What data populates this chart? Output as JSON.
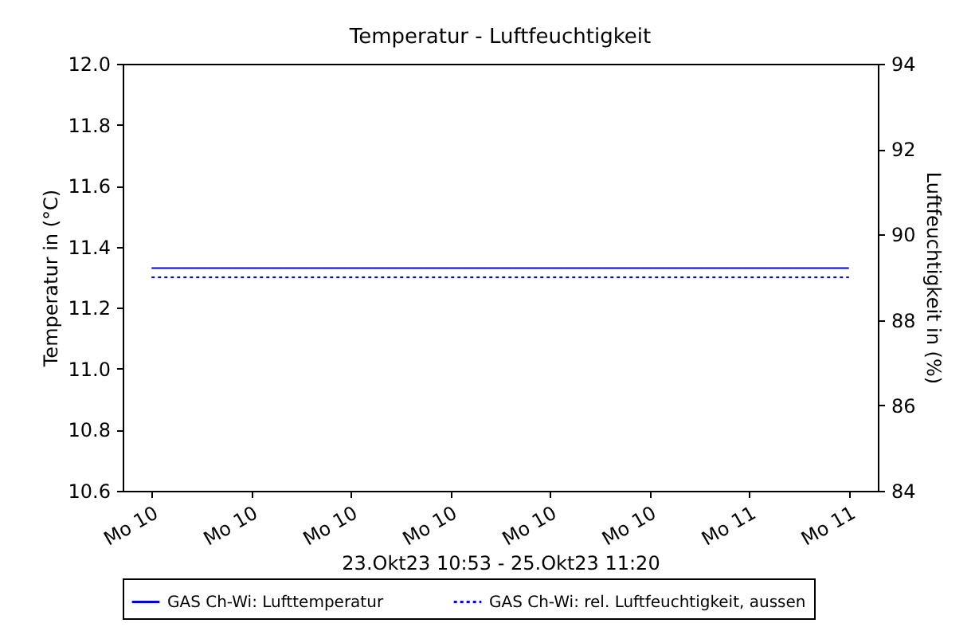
{
  "chart_data": {
    "type": "line",
    "title": "Temperatur - Luftfeuchtigkeit",
    "xlabel": "23.Okt23 10:53 - 25.Okt23 11:20",
    "ylabel": "Temperatur in (°C)",
    "y2label": "Luftfeuchtigkeit in (%)",
    "categories": [
      "Mo 10",
      "Mo 10",
      "Mo 10",
      "Mo 10",
      "Mo 10",
      "Mo 10",
      "Mo 11",
      "Mo 11"
    ],
    "ylim": [
      10.6,
      12.0
    ],
    "yticks": [
      {
        "value": 10.6,
        "label": "10.6"
      },
      {
        "value": 10.8,
        "label": "10.8"
      },
      {
        "value": 11.0,
        "label": "11.0"
      },
      {
        "value": 11.2,
        "label": "11.2"
      },
      {
        "value": 11.4,
        "label": "11.4"
      },
      {
        "value": 11.6,
        "label": "11.6"
      },
      {
        "value": 11.8,
        "label": "11.8"
      },
      {
        "value": 12.0,
        "label": "12.0"
      }
    ],
    "y2lim": [
      84,
      94
    ],
    "y2ticks": [
      84,
      86,
      88,
      90,
      92,
      94
    ],
    "grid": false,
    "legend": "bottom",
    "marker": "none",
    "series": [
      {
        "name": "GAS Ch-Wi: Lufttemperatur",
        "color": "#0000ff",
        "values": [
          11.33,
          11.33,
          11.33,
          11.33,
          11.33,
          11.33,
          11.33,
          11.33
        ],
        "line_style": "solid"
      },
      {
        "name": "GAS Ch-Wi: rel. Luftfeuchtigkeit, aussen",
        "color": "#0000ff",
        "values": [
          89.0,
          89.0,
          89.0,
          89.0,
          89.0,
          89.0,
          89.0,
          89.0
        ],
        "axis": "y2",
        "line_style": "dotted"
      }
    ]
  }
}
